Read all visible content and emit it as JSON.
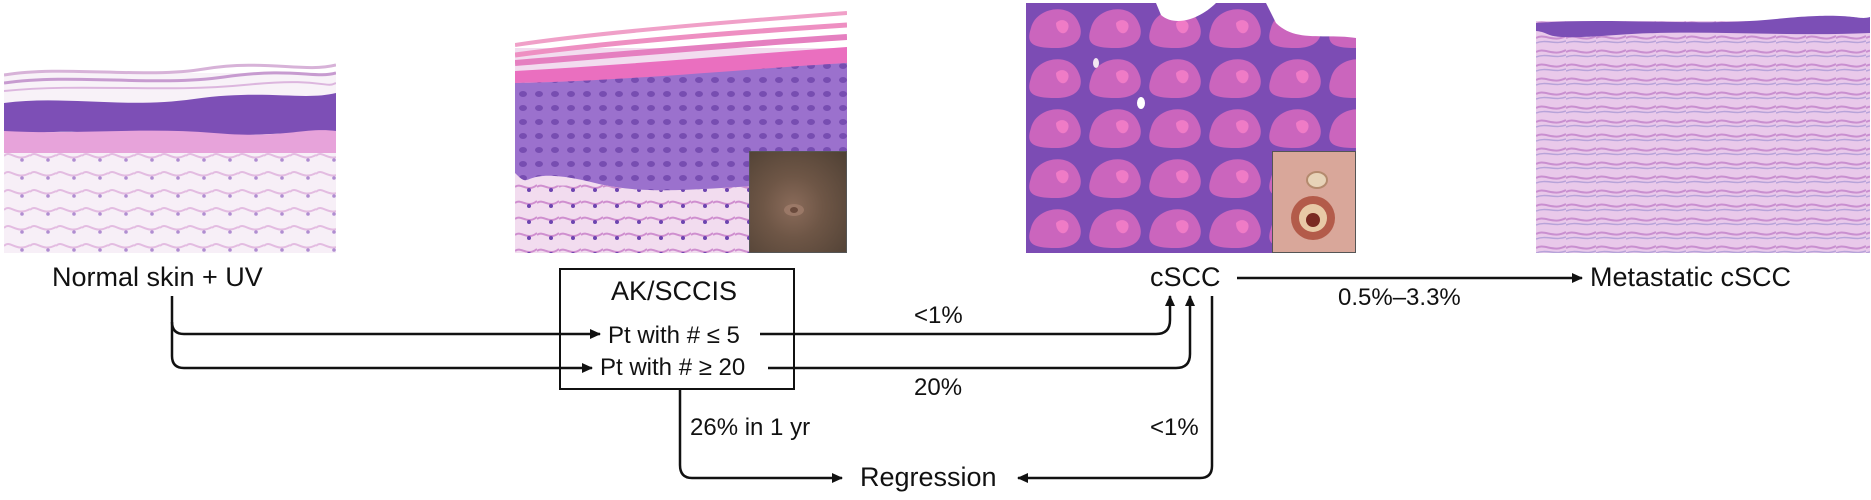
{
  "panels": [
    {
      "id": "normal",
      "label": "Normal skin + UV",
      "has_inset": false
    },
    {
      "id": "ak",
      "label": "AK/SCCIS",
      "has_inset": true
    },
    {
      "id": "cscc",
      "label": "cSCC",
      "has_inset": true
    },
    {
      "id": "metastatic",
      "label": "Metastatic cSCC",
      "has_inset": false
    }
  ],
  "box_rows": [
    "Pt with # ≤ 5",
    "Pt with # ≥ 20"
  ],
  "rates": {
    "low_progression": "<1%",
    "high_progression": "20%",
    "metastasis": "0.5%–3.3%",
    "ak_regression": "26% in 1 yr",
    "cscc_regression": "<1%"
  },
  "regression_label": "Regression",
  "colors": {
    "eosin_pink": "#e59ad6",
    "hematoxylin_purple": "#7a4ab8",
    "dermis_pale": "#f3e6f2",
    "arrow": "#111111"
  }
}
